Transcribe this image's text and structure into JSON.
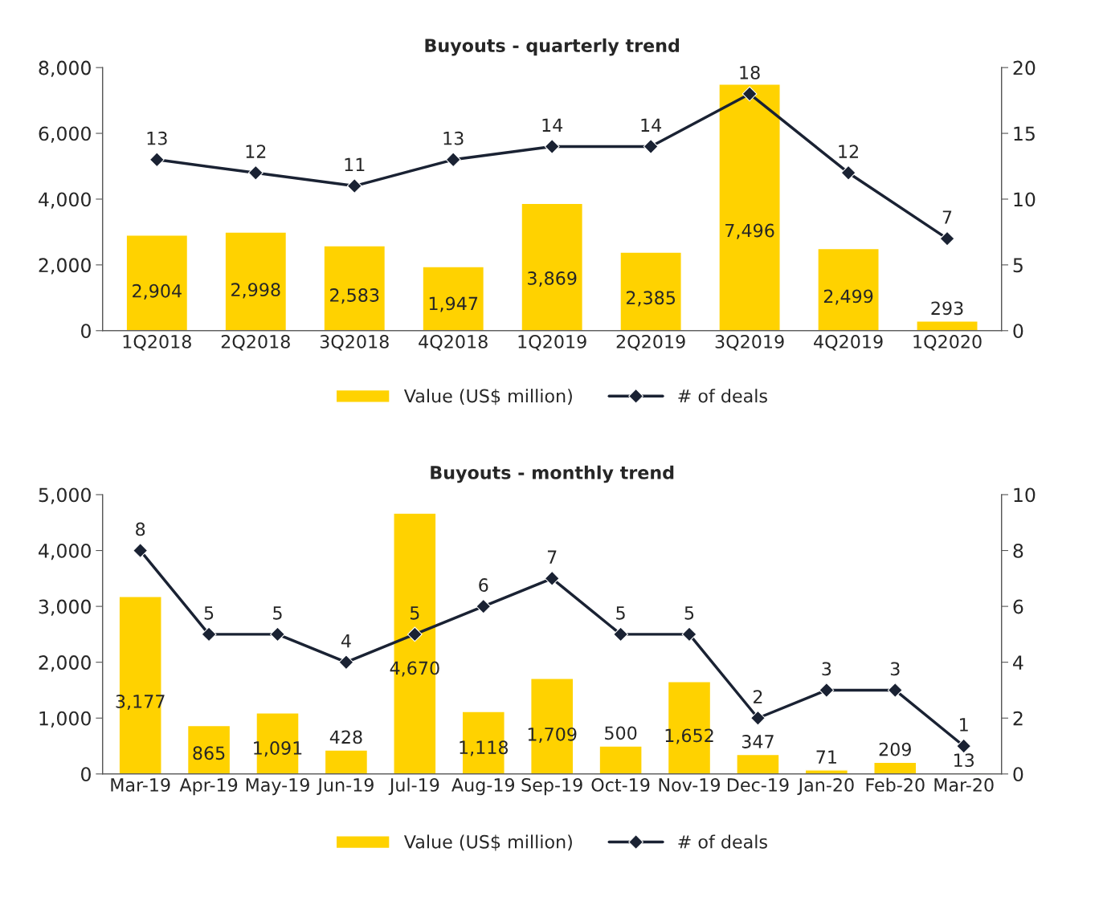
{
  "chart_data": [
    {
      "type": "bar",
      "title": "Buyouts - quarterly trend",
      "categories": [
        "1Q2018",
        "2Q2018",
        "3Q2018",
        "4Q2018",
        "1Q2019",
        "2Q2019",
        "3Q2019",
        "4Q2019",
        "1Q2020"
      ],
      "series": [
        {
          "name": "Value (US$ million)",
          "color": "#ffd200",
          "values": [
            2904,
            2998,
            2583,
            1947,
            3869,
            2385,
            7496,
            2499,
            293
          ],
          "value_labels": [
            "2,904",
            "2,998",
            "2,583",
            "1,947",
            "3,869",
            "2,385",
            "7,496",
            "2,499",
            "293"
          ]
        },
        {
          "name": "# of deals",
          "type": "line",
          "axis": "y2",
          "color": "#1a2233",
          "marker": "diamond",
          "values": [
            13,
            12,
            11,
            13,
            14,
            14,
            18,
            12,
            7
          ],
          "value_labels": [
            "13",
            "12",
            "11",
            "13",
            "14",
            "14",
            "18",
            "12",
            "7"
          ]
        }
      ],
      "ylim": [
        0,
        8000
      ],
      "yticks": [
        {
          "value": 0,
          "label": "0"
        },
        {
          "value": 2000,
          "label": "2,000"
        },
        {
          "value": 4000,
          "label": "4,000"
        },
        {
          "value": 6000,
          "label": "6,000"
        },
        {
          "value": 8000,
          "label": "8,000"
        }
      ],
      "y2lim": [
        0,
        20
      ],
      "y2ticks": [
        0,
        5,
        10,
        15,
        20
      ],
      "legend": "bottom",
      "grid": false
    },
    {
      "type": "bar",
      "title": "Buyouts - monthly trend",
      "categories": [
        "Mar-19",
        "Apr-19",
        "May-19",
        "Jun-19",
        "Jul-19",
        "Aug-19",
        "Sep-19",
        "Oct-19",
        "Nov-19",
        "Dec-19",
        "Jan-20",
        "Feb-20",
        "Mar-20"
      ],
      "series": [
        {
          "name": "Value (US$ million)",
          "color": "#ffd200",
          "values": [
            3177,
            865,
            1091,
            428,
            4670,
            1118,
            1709,
            500,
            1652,
            347,
            71,
            209,
            13
          ],
          "value_labels": [
            "3,177",
            "865",
            "1,091",
            "428",
            "4,670",
            "1,118",
            "1,709",
            "500",
            "1,652",
            "347",
            "71",
            "209",
            "13"
          ]
        },
        {
          "name": "# of deals",
          "type": "line",
          "axis": "y2",
          "color": "#1a2233",
          "marker": "diamond",
          "values": [
            8,
            5,
            5,
            4,
            5,
            6,
            7,
            5,
            5,
            2,
            3,
            3,
            1
          ],
          "value_labels": [
            "8",
            "5",
            "5",
            "4",
            "5",
            "6",
            "7",
            "5",
            "5",
            "2",
            "3",
            "3",
            "1"
          ]
        }
      ],
      "ylim": [
        0,
        5000
      ],
      "yticks": [
        {
          "value": 0,
          "label": "0"
        },
        {
          "value": 1000,
          "label": "1,000"
        },
        {
          "value": 2000,
          "label": "2,000"
        },
        {
          "value": 3000,
          "label": "3,000"
        },
        {
          "value": 4000,
          "label": "4,000"
        },
        {
          "value": 5000,
          "label": "5,000"
        }
      ],
      "y2lim": [
        0,
        10
      ],
      "y2ticks": [
        0,
        2,
        4,
        6,
        8,
        10
      ],
      "legend": "bottom",
      "grid": false
    }
  ]
}
